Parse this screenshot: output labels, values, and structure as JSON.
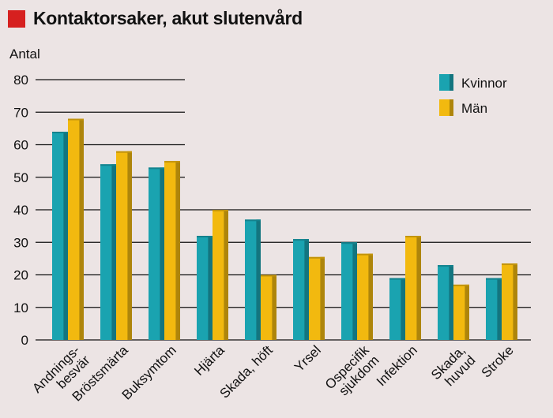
{
  "chart_data": {
    "type": "bar",
    "title": "Kontaktorsaker, akut slutenvård",
    "ylabel": "Antal",
    "xlabel": "",
    "ylim": [
      0,
      80
    ],
    "yticks": [
      0,
      10,
      20,
      30,
      40,
      50,
      60,
      70,
      80
    ],
    "categories": [
      [
        "Andnings-",
        "besvär"
      ],
      [
        "Bröstsmärta"
      ],
      [
        "Buksymtom"
      ],
      [
        "Hjärta"
      ],
      [
        "Skada, höft"
      ],
      [
        "Yrsel"
      ],
      [
        "Ospecifik",
        "sjukdom"
      ],
      [
        "Infektion"
      ],
      [
        "Skada,",
        "huvud"
      ],
      [
        "Stroke"
      ]
    ],
    "series": [
      {
        "name": "Kvinnor",
        "color": "#1aa3b0",
        "values": [
          64,
          54,
          53,
          32,
          37,
          31,
          30,
          19,
          23,
          19
        ]
      },
      {
        "name": "Män",
        "color": "#f2b90f",
        "values": [
          68,
          58,
          55,
          40,
          20,
          25.5,
          26.5,
          32,
          17,
          23.5
        ]
      }
    ],
    "legend": "top-right",
    "grid": true
  }
}
